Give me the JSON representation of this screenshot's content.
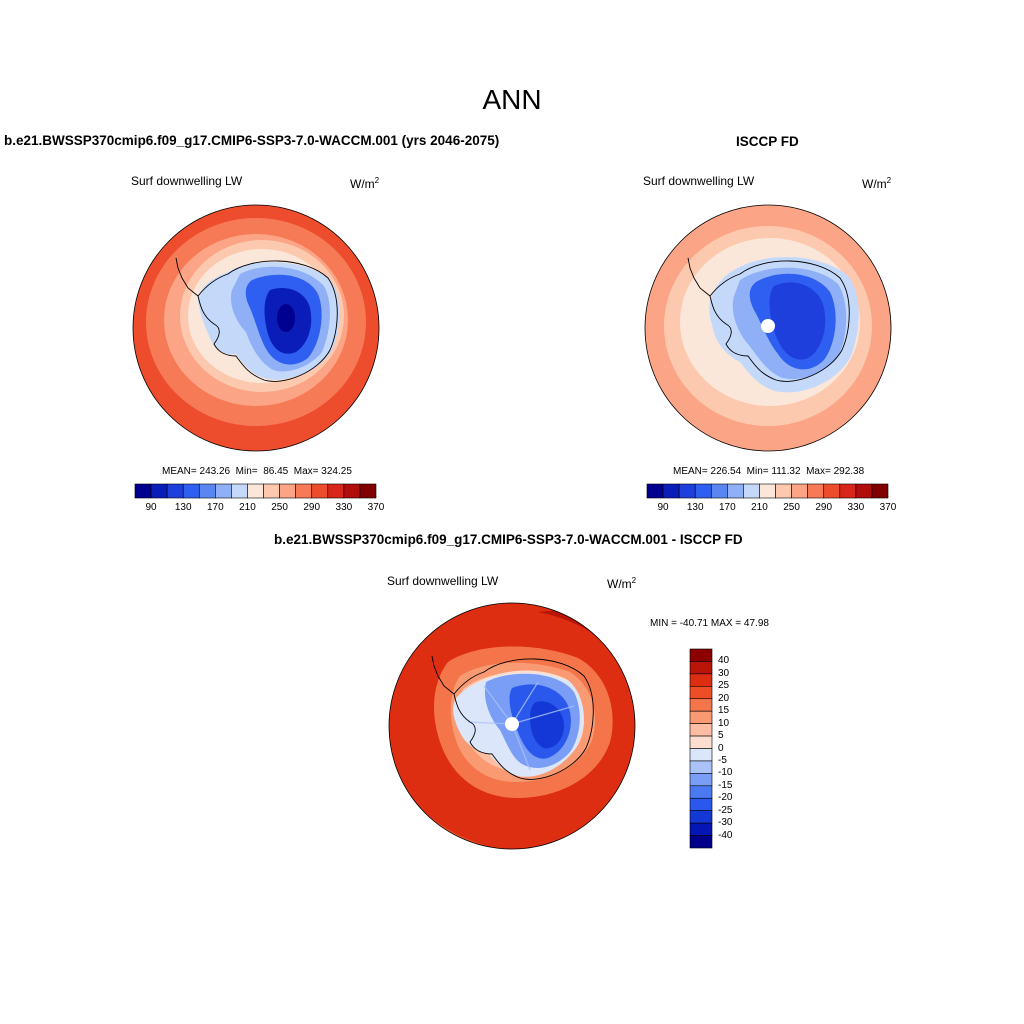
{
  "title": "ANN",
  "palette": [
    "#000090",
    "#0a1db8",
    "#1e3fdc",
    "#2f5ff0",
    "#5a86f4",
    "#8fb0f6",
    "#c4d8fa",
    "#fbe6da",
    "#fcc9ae",
    "#fba486",
    "#f77a57",
    "#ed4d2c",
    "#d8271a",
    "#b20d0d",
    "#800000"
  ],
  "diff_palette": [
    "#00008a",
    "#0616b4",
    "#1438d6",
    "#2a58ec",
    "#4b79f2",
    "#7a9ef5",
    "#a9c2f8",
    "#dbe6fb",
    "#fcded0",
    "#fcbda3",
    "#fa9a73",
    "#f5754a",
    "#ee4e26",
    "#dd2e12",
    "#b91508",
    "#8c0000"
  ],
  "panels": [
    {
      "title": "b.e21.BWSSP370cmip6.f09_g17.CMIP6-SSP3-7.0-WACCM.001 (yrs 2046-2075)",
      "variable": "Surf downwelling LW",
      "units": "W/m",
      "units_exp": "2",
      "stats": {
        "mean_label": "MEAN=",
        "mean": "243.26",
        "min_label": "Min=",
        "min": "86.45",
        "max_label": "Max=",
        "max": "324.25"
      },
      "colorbar_ticks": [
        "90",
        "130",
        "170",
        "210",
        "250",
        "290",
        "330",
        "370"
      ]
    },
    {
      "title": "ISCCP FD",
      "variable": "Surf downwelling LW",
      "units": "W/m",
      "units_exp": "2",
      "stats": {
        "mean_label": "MEAN=",
        "mean": "226.54",
        "min_label": "Min=",
        "min": "111.32",
        "max_label": "Max=",
        "max": "292.38"
      },
      "colorbar_ticks": [
        "90",
        "130",
        "170",
        "210",
        "250",
        "290",
        "330",
        "370"
      ]
    }
  ],
  "diff_panel": {
    "title": "b.e21.BWSSP370cmip6.f09_g17.CMIP6-SSP3-7.0-WACCM.001 - ISCCP FD",
    "variable": "Surf downwelling LW",
    "units": "W/m",
    "units_exp": "2",
    "minmax": "MIN = -40.71 MAX =  47.98",
    "colorbar_ticks": [
      "40",
      "30",
      "25",
      "20",
      "15",
      "10",
      "5",
      "0",
      "-5",
      "-10",
      "-15",
      "-20",
      "-25",
      "-30",
      "-40"
    ]
  }
}
